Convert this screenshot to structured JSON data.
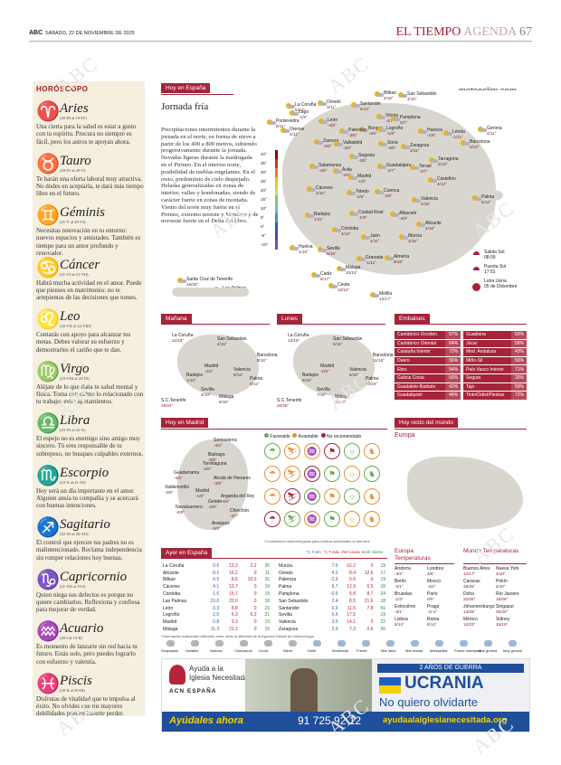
{
  "header": {
    "brand": "ABC",
    "date": "SÁBADO, 22 DE NOVIEMBRE DE 2025",
    "section": "EL TIEMPO",
    "subsection": "AGENDA",
    "page": "67"
  },
  "watermark": "ABC",
  "horoscope": {
    "title": "HORÓSCOPO",
    "signs": [
      {
        "glyph": "♈",
        "name": "Aries",
        "dates": "(20-III al 19-IV)",
        "text": "Una cierta para la salud es estar a gusto con tu espíritu. Procura no siempre es fácil, pero los astros te apoyan ahora."
      },
      {
        "glyph": "♉",
        "name": "Tauro",
        "dates": "(20-IV al 20-V)",
        "text": "Te harán una oferta laboral muy atractiva. No dudes en aceptarla, te dará más tiempo libre en el futuro."
      },
      {
        "glyph": "♊",
        "name": "Géminis",
        "dates": "(21-V al 20-VI)",
        "text": "Necesitas renovación en tu entorno: nuevos espacios y amistades. También es tiempo para un amor profundo y renovador."
      },
      {
        "glyph": "♋",
        "name": "Cáncer",
        "dates": "(21-VI al 21-VII)",
        "text": "Habrá mucha actividad en el amor. Puede que pienses en matrimonio: no te arrepientas de las decisiones que tomes."
      },
      {
        "glyph": "♌",
        "name": "Leo",
        "dates": "(22-VII al 22-VIII)",
        "text": "Contarás con apoyo para alcanzar tus metas. Debes valorar su esfuerzo y demostrarles el cariño que te dan."
      },
      {
        "glyph": "♍",
        "name": "Virgo",
        "dates": "(23-VIII al 22-IX)",
        "text": "Aléjate de lo que daña tu salud mental y física. Toma con calma lo relacionado con tu trabajo: evita agotamientos."
      },
      {
        "glyph": "♎",
        "name": "Libra",
        "dates": "(23-IX al 22-X)",
        "text": "El espejo no es enemigo sino amigo muy sincero. Tú eres responsable de tu sobrepeso, no busques culpables externos."
      },
      {
        "glyph": "♏",
        "name": "Escorpio",
        "dates": "(23-X al 21-XI)",
        "text": "Hoy será un día importante en el amor. Alguien ansía tu compañía y se acercará con buenas intenciones."
      },
      {
        "glyph": "♐",
        "name": "Sagitario",
        "dates": "(22-XI al 20-XII)",
        "text": "El control que ejercen tus padres no es malintencionado. Reclama independencia sin romper relaciones hoy buenas."
      },
      {
        "glyph": "♑",
        "name": "Capricornio",
        "dates": "(21-XII al 19-I)",
        "text": "Quien niega sus defectos es porque no quiere cambiarlos. Reflexiona y confiesa para mejorar de verdad."
      },
      {
        "glyph": "♒",
        "name": "Acuario",
        "dates": "(20-I al 19-II)",
        "text": "Es momento de lanzarte sin red hacia tu futuro. Estás solo, pero puedes lograrlo con esfuerzo y valentía."
      },
      {
        "glyph": "♓",
        "name": "Piscis",
        "dates": "(20-II al 20-III)",
        "text": "Disfrutas de vitalidad que te impulsa al éxito. No olvides que tus mayores debilidades pueden hacerte perder."
      }
    ]
  },
  "hoy_espana": {
    "label": "Hoy en España",
    "brand": "meteoclim.com",
    "headline": "Jornada fría",
    "body": "Precipitaciones intermitentes durante la jornada en el norte, en forma de nieve a partir de los 400 a 800 metros, subiendo progresivamente durante la jornada. Nevadas ligeras durante la madrugada en el Pirineo. En el interior norte, posibilidad de nieblas engelantes. En el resto, predominio de cielo despejado. Heladas generalizadas en zonas de interior, valles y hondonadas, siendo de carácter fuerte en zonas de montaña. Viento del norte muy fuerte en el Pirineo, extremo noreste y Menorca y de noroeste fuerte en el Delta del Ebro.",
    "scale": [
      "40°",
      "35°",
      "30°",
      "25°",
      "20°",
      "15°",
      "10°",
      "5°",
      "0°",
      "-5°",
      "-10°"
    ],
    "cities": [
      {
        "n": "La Coruña",
        "t": "5/13°"
      },
      {
        "n": "Oviedo",
        "t": "3/11°"
      },
      {
        "n": "Bilbao",
        "t": "5/16°"
      },
      {
        "n": "San Sebastián",
        "t": "4/10°"
      },
      {
        "n": "Lugo",
        "t": "-1/9°"
      },
      {
        "n": "Santander",
        "t": "5/12°"
      },
      {
        "n": "Vitoria",
        "t": "-2/7°"
      },
      {
        "n": "Pontevedra",
        "t": "8/11°"
      },
      {
        "n": "Burgos",
        "t": "-4/5°"
      },
      {
        "n": "Pamplona",
        "t": "0/7°"
      },
      {
        "n": "Orense",
        "t": "4/11°"
      },
      {
        "n": "León",
        "t": "-4/6°"
      },
      {
        "n": "Palencia",
        "t": "-3/6°"
      },
      {
        "n": "Logroño",
        "t": "-1/8°"
      },
      {
        "n": "Huesca",
        "t": "-1/8°"
      },
      {
        "n": "Lérida",
        "t": "-1/11°"
      },
      {
        "n": "Gerona",
        "t": "4/11°"
      },
      {
        "n": "Zamora",
        "t": "-2/6°"
      },
      {
        "n": "Valladolid",
        "t": "-3/6°"
      },
      {
        "n": "Soria",
        "t": "-4/5°"
      },
      {
        "n": "Zaragoza",
        "t": "2/11°"
      },
      {
        "n": "Barcelona",
        "t": "6/13°"
      },
      {
        "n": "Tarragona",
        "t": "3/13°"
      },
      {
        "n": "Segovia",
        "t": "-3/5°"
      },
      {
        "n": "Guadalajara",
        "t": "-3/7°"
      },
      {
        "n": "Salamanca",
        "t": "-4/5°"
      },
      {
        "n": "Ávila",
        "t": "-2/5°"
      },
      {
        "n": "Madrid",
        "t": "-1/8°"
      },
      {
        "n": "Teruel",
        "t": "-4/7°"
      },
      {
        "n": "Castellón",
        "t": "4/13°"
      },
      {
        "n": "Cuenca",
        "t": "-3/8°"
      },
      {
        "n": "Cáceres",
        "t": "2/10°"
      },
      {
        "n": "Toledo",
        "t": "-1/9°"
      },
      {
        "n": "Palma",
        "t": "6/12°"
      },
      {
        "n": "Valencia",
        "t": "4/15°"
      },
      {
        "n": "Badajoz",
        "t": "1/11°"
      },
      {
        "n": "Ciudad Real",
        "t": "-1/9°"
      },
      {
        "n": "Albacete",
        "t": "-4/9°"
      },
      {
        "n": "Alicante",
        "t": "4/15°"
      },
      {
        "n": "Córdoba",
        "t": "4/14°"
      },
      {
        "n": "Jaén",
        "t": "4/11°"
      },
      {
        "n": "Murcia",
        "t": "3/15°"
      },
      {
        "n": "Huelva",
        "t": "4/15°"
      },
      {
        "n": "Sevilla",
        "t": "5/15°"
      },
      {
        "n": "Granada",
        "t": "-1/11°"
      },
      {
        "n": "Almería",
        "t": "9/16°"
      },
      {
        "n": "Málaga",
        "t": "10/15°"
      },
      {
        "n": "Cádiz",
        "t": "6/17°"
      },
      {
        "n": "Ceuta",
        "t": "10/16°"
      },
      {
        "n": "Melilla",
        "t": "12/17°"
      },
      {
        "n": "Santa Cruz de Tenerife",
        "t": "18/25°"
      },
      {
        "n": "Las Palmas",
        "t": "16/18°"
      }
    ],
    "sun_rise_label": "Salida Sol",
    "sun_rise": "08:09",
    "sun_set_label": "Puesta Sol",
    "sun_set": "17:52",
    "moon_label": "Luna Llena",
    "moon_date": "05 de Diciembre"
  },
  "manana": {
    "label": "Mañana",
    "cities": [
      {
        "n": "La Coruña",
        "t": "11/18°"
      },
      {
        "n": "San Sebastián",
        "t": "4/15°"
      },
      {
        "n": "Barcelona",
        "t": "8/16°"
      },
      {
        "n": "Madrid",
        "t": "-4/4°"
      },
      {
        "n": "Valencia",
        "t": "8/15°"
      },
      {
        "n": "Badajoz",
        "t": "1/10°"
      },
      {
        "n": "Palma",
        "t": "8/12°"
      },
      {
        "n": "Sevilla",
        "t": "4/13°"
      },
      {
        "n": "Málaga",
        "t": "9/18°"
      },
      {
        "n": "S.C.Tenerife",
        "t": "18/24°"
      }
    ]
  },
  "lunes": {
    "label": "Lunes",
    "cities": [
      {
        "n": "La Coruña",
        "t": "12/16°"
      },
      {
        "n": "San Sebastián",
        "t": "5/15°"
      },
      {
        "n": "Barcelona",
        "t": "11/15°"
      },
      {
        "n": "Madrid",
        "t": "-1/5°"
      },
      {
        "n": "Valencia",
        "t": "8/15°"
      },
      {
        "n": "Badajoz",
        "t": "8/15°"
      },
      {
        "n": "Palma",
        "t": "10/18°"
      },
      {
        "n": "Sevilla",
        "t": "7/16°"
      },
      {
        "n": "Málaga",
        "t": "11/19°"
      },
      {
        "n": "S.C.Tenerife",
        "t": "20/25°"
      }
    ]
  },
  "embalses": {
    "label": "Embalses",
    "rows": [
      [
        "Cantábrico Occiden.",
        "57%",
        "Guadiana",
        "50%"
      ],
      [
        "Cantábrico Oriental",
        "64%",
        "Júcar",
        "56%"
      ],
      [
        "Cataluña Interior",
        "72%",
        "Med. Andaluza",
        "43%"
      ],
      [
        "Duero",
        "56%",
        "Miño-Sil",
        "56%"
      ],
      [
        "Ebro",
        "54%",
        "País Vasco Interior",
        "71%"
      ],
      [
        "Galicia Costa",
        "56%",
        "Segura",
        "20%"
      ],
      [
        "Guadalete-Barbate",
        "42%",
        "Tajo",
        "59%"
      ],
      [
        "Guadalquivir",
        "44%",
        "Tinto/Odiel/Piedras",
        "72%"
      ]
    ]
  },
  "hoy_madrid": {
    "label": "Hoy en Madrid",
    "cities": [
      {
        "n": "Somosierra",
        "t": "-4/3°"
      },
      {
        "n": "Buitrago",
        "t": "-5/5°"
      },
      {
        "n": "Torrelaguna",
        "t": "-2/6°"
      },
      {
        "n": "Guadarrama",
        "t": "-4/6°"
      },
      {
        "n": "Alcalá de Henares",
        "t": "-3/8°"
      },
      {
        "n": "Valdemorillo",
        "t": "-3/6°"
      },
      {
        "n": "Madrid",
        "t": "-1/8°"
      },
      {
        "n": "Arganda del Rey",
        "t": "-4/8°"
      },
      {
        "n": "Getafe",
        "t": "-2/8°"
      },
      {
        "n": "Navalcarnero",
        "t": "-2/9°"
      },
      {
        "n": "Chinchón",
        "t": "-3/7°"
      },
      {
        "n": "Aranjuez",
        "t": "-5/8°"
      }
    ]
  },
  "actividades": {
    "legend": [
      "Favorable",
      "Aceptable",
      "No recomendado"
    ],
    "note": "*Condiciones meteorológicas para realizar actividades al aire libre"
  },
  "resto_mundo": {
    "label": "Hoy resto del mundo",
    "region": "Europa"
  },
  "ayer": {
    "label": "Ayer en España",
    "col_tmin": "°C T.mín",
    "col_tmax": "°C T.máx",
    "col_rain": "l/m² Lluvia",
    "col_wind": "km/h Viento",
    "left": [
      [
        "La Coruña",
        "9.6",
        "13.2",
        "2.2",
        "35"
      ],
      [
        "Alicante",
        "8.1",
        "16.2",
        "0",
        "11"
      ],
      [
        "Bilbao",
        "4.5",
        "8.6",
        "33.3",
        "26"
      ],
      [
        "Cáceres",
        "4.1",
        "12.7",
        "0",
        "19"
      ],
      [
        "Córdoba",
        "1.6",
        "15.7",
        "0",
        "19"
      ],
      [
        "Las Palmas",
        "19.0",
        "22.0",
        "0",
        "18"
      ],
      [
        "León",
        "0.3",
        "8.8",
        "0",
        "23"
      ],
      [
        "Logroño",
        "2.5",
        "6.3",
        "6.2",
        "21"
      ],
      [
        "Madrid",
        "0.8",
        "9.3",
        "0",
        "19"
      ],
      [
        "Málaga",
        "11.3",
        "21.1",
        "0",
        "16"
      ]
    ],
    "right": [
      [
        "Murcia",
        "7.5",
        "16.2",
        "0",
        "19"
      ],
      [
        "Oviedo",
        "4.2",
        "8.4",
        "12.6",
        "17"
      ],
      [
        "Palencia",
        "-2.9",
        "5.6",
        "0",
        "19"
      ],
      [
        "Palma",
        "8.7",
        "12.9",
        "6.5",
        "18"
      ],
      [
        "Pamplona",
        "-0.5",
        "5.8",
        "8.7",
        "34"
      ],
      [
        "San Sebastián",
        "2.4",
        "8.5",
        "21.6",
        "18"
      ],
      [
        "Santander",
        "6.9",
        "11.6",
        "7.8",
        "41"
      ],
      [
        "Sevilla",
        "6.6",
        "17.5",
        "-",
        "19"
      ],
      [
        "Valencia",
        "3.9",
        "14.1",
        "0",
        "22"
      ],
      [
        "Zaragoza",
        "2.9",
        "7.3",
        "0.6",
        "30"
      ]
    ],
    "foot": "*Información elaborada utilizando entre otras la obtenida de la Agencia Estatal de Meteorología"
  },
  "europa": {
    "label": "Europa Temperaturas",
    "rows": [
      [
        "Andorra",
        "-3/2°",
        "Londres",
        "3/6°"
      ],
      [
        "Berlín",
        "-3/1°",
        "Moscú",
        "-4/2°"
      ],
      [
        "Bruselas",
        "-1/3°",
        "París",
        "0/5°"
      ],
      [
        "Estocolmo",
        "-3/1°",
        "Praga",
        "-4/-4°"
      ],
      [
        "Lisboa",
        "6/14°",
        "Roma",
        "8/14°"
      ]
    ]
  },
  "mundo": {
    "label": "Mundo Temperaturas",
    "rows": [
      [
        "Buenos Aires",
        "12/17°",
        "Nueva York",
        "4/10°"
      ],
      [
        "Caracas",
        "18/25°",
        "Pekín",
        "5/10°"
      ],
      [
        "Doha",
        "22/28°",
        "Río Janeiro",
        "19/26°"
      ],
      [
        "Johannesburgo",
        "13/26°",
        "Singapur",
        "25/30°"
      ],
      [
        "México",
        "12/23°",
        "Sidney",
        "15/19°"
      ]
    ]
  },
  "icon_legend": [
    "Despejado",
    "Variable",
    "Nuboso",
    "Chubascos",
    "Lluvia",
    "Nieve",
    "Débil",
    "Moderado",
    "Fuerte",
    "Mar llana",
    "Mar rizada",
    "Marejadilla",
    "Fuerte marejada",
    "Mar gruesa",
    "Muy gruesa"
  ],
  "ad": {
    "org_line1": "Ayuda a la",
    "org_line2": "Iglesia Necesitada",
    "org_acn": "ACN ESPAÑA",
    "banner": "2 AÑOS DE GUERRA",
    "country": "UCRANIA",
    "tagline": "No quiero olvidarte",
    "cta": "Ayúdales ahora",
    "phone": "91 725 92 12",
    "url": "ayudaalaiglesianecesitada.org"
  }
}
